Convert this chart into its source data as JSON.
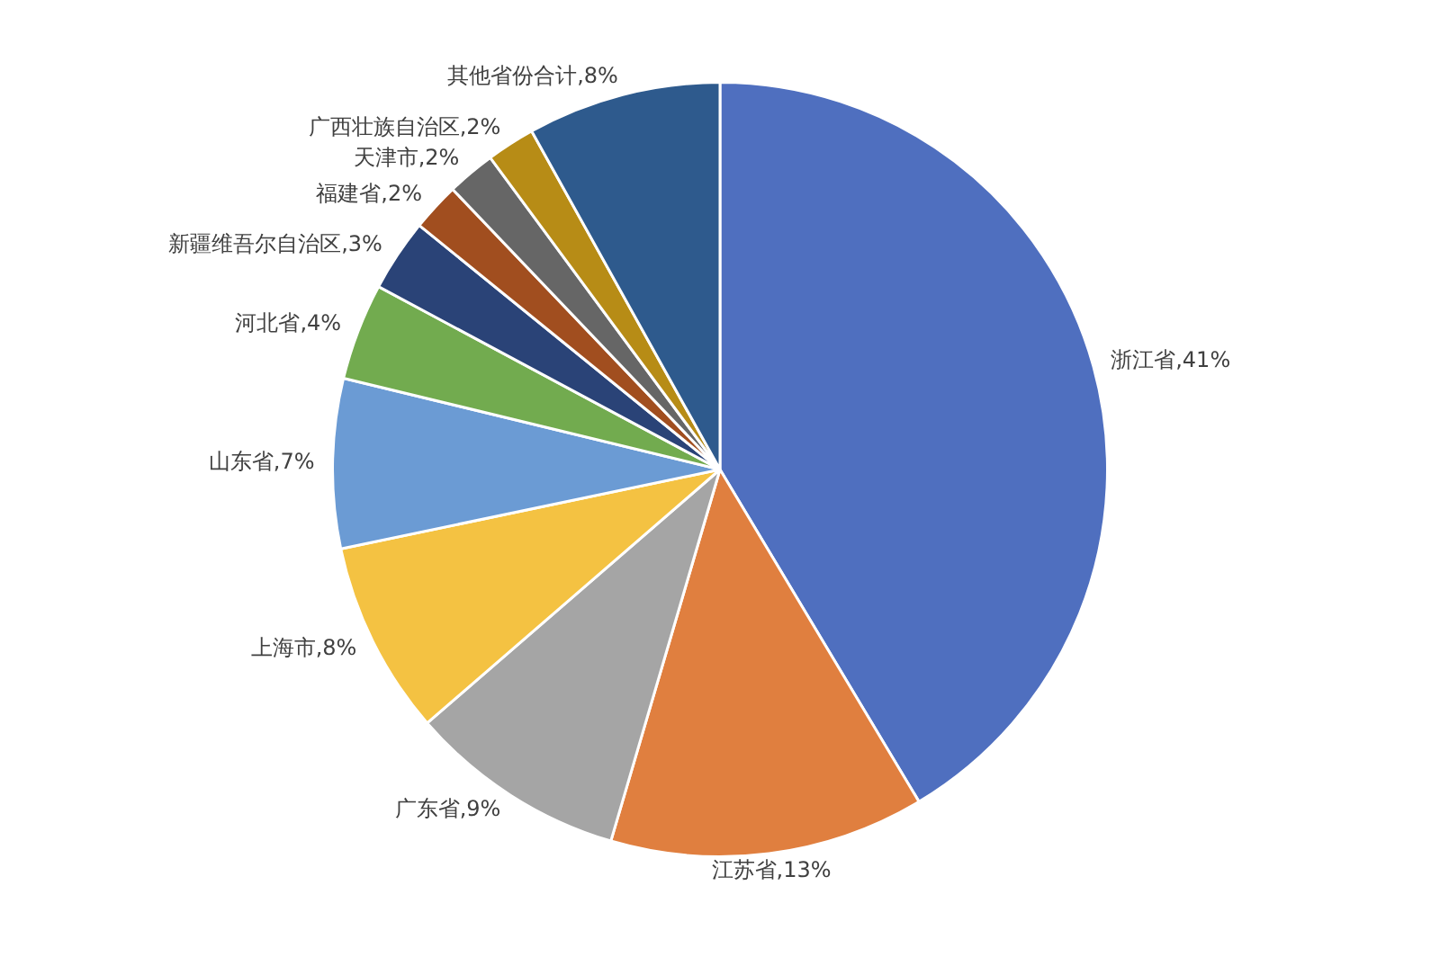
{
  "chart_data": {
    "type": "pie",
    "categories": [
      "浙江省",
      "江苏省",
      "广东省",
      "上海市",
      "山东省",
      "河北省",
      "新疆维吾尔自治区",
      "福建省",
      "天津市",
      "广西壮族自治区",
      "其他省份合计"
    ],
    "values": [
      41,
      13,
      9,
      8,
      7,
      4,
      3,
      2,
      2,
      2,
      8
    ],
    "value_labels": [
      "41%",
      "13%",
      "9%",
      "8%",
      "7%",
      "4%",
      "3%",
      "2%",
      "2%",
      "2%",
      "8%"
    ],
    "colors": [
      "#4f6fbf",
      "#e07f3f",
      "#a5a5a5",
      "#f4c242",
      "#6b9bd4",
      "#72ab4f",
      "#2a4377",
      "#a14e1f",
      "#666666",
      "#b78c16",
      "#2e5a8d"
    ],
    "legend": false
  }
}
